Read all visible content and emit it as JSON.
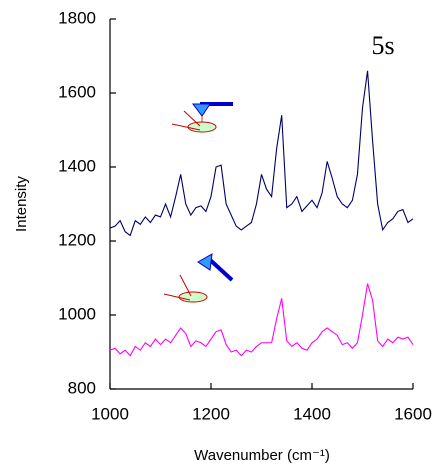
{
  "chart_data": {
    "type": "line",
    "x_label": "Wavenumber (cm⁻¹)",
    "y_label": "Intensity",
    "annotation": "5s",
    "x": [
      1000,
      1010,
      1020,
      1030,
      1040,
      1050,
      1060,
      1070,
      1080,
      1090,
      1100,
      1110,
      1120,
      1130,
      1140,
      1150,
      1160,
      1170,
      1180,
      1190,
      1200,
      1210,
      1220,
      1230,
      1240,
      1250,
      1260,
      1270,
      1280,
      1290,
      1300,
      1310,
      1320,
      1330,
      1340,
      1350,
      1360,
      1370,
      1380,
      1390,
      1400,
      1410,
      1420,
      1430,
      1440,
      1450,
      1460,
      1470,
      1480,
      1490,
      1500,
      1510,
      1520,
      1530,
      1540,
      1550,
      1560,
      1570,
      1580,
      1590,
      1600
    ],
    "series": [
      {
        "color": "#000066",
        "values": [
          1235,
          1240,
          1255,
          1225,
          1215,
          1255,
          1245,
          1265,
          1250,
          1270,
          1265,
          1300,
          1265,
          1320,
          1380,
          1300,
          1270,
          1290,
          1295,
          1280,
          1320,
          1400,
          1405,
          1300,
          1270,
          1240,
          1230,
          1240,
          1250,
          1300,
          1380,
          1340,
          1320,
          1450,
          1540,
          1290,
          1300,
          1320,
          1280,
          1295,
          1310,
          1290,
          1330,
          1415,
          1370,
          1320,
          1300,
          1290,
          1310,
          1380,
          1560,
          1660,
          1470,
          1300,
          1230,
          1250,
          1260,
          1280,
          1285,
          1250,
          1260
        ]
      },
      {
        "color": "#ff00ff",
        "values": [
          905,
          910,
          895,
          905,
          890,
          915,
          905,
          925,
          915,
          935,
          920,
          935,
          925,
          945,
          965,
          950,
          915,
          930,
          925,
          915,
          935,
          955,
          960,
          920,
          900,
          905,
          890,
          905,
          900,
          915,
          925,
          925,
          925,
          990,
          1045,
          930,
          915,
          925,
          910,
          905,
          925,
          935,
          955,
          965,
          955,
          945,
          920,
          925,
          910,
          925,
          1000,
          1085,
          1040,
          930,
          915,
          935,
          925,
          940,
          935,
          940,
          920
        ]
      }
    ],
    "xlim": [
      1000,
      1600
    ],
    "xticks": [
      1000,
      1200,
      1400,
      1600
    ],
    "ylim": [
      800,
      1800
    ],
    "yticks": [
      800,
      1000,
      1200,
      1400,
      1600,
      1800
    ]
  }
}
